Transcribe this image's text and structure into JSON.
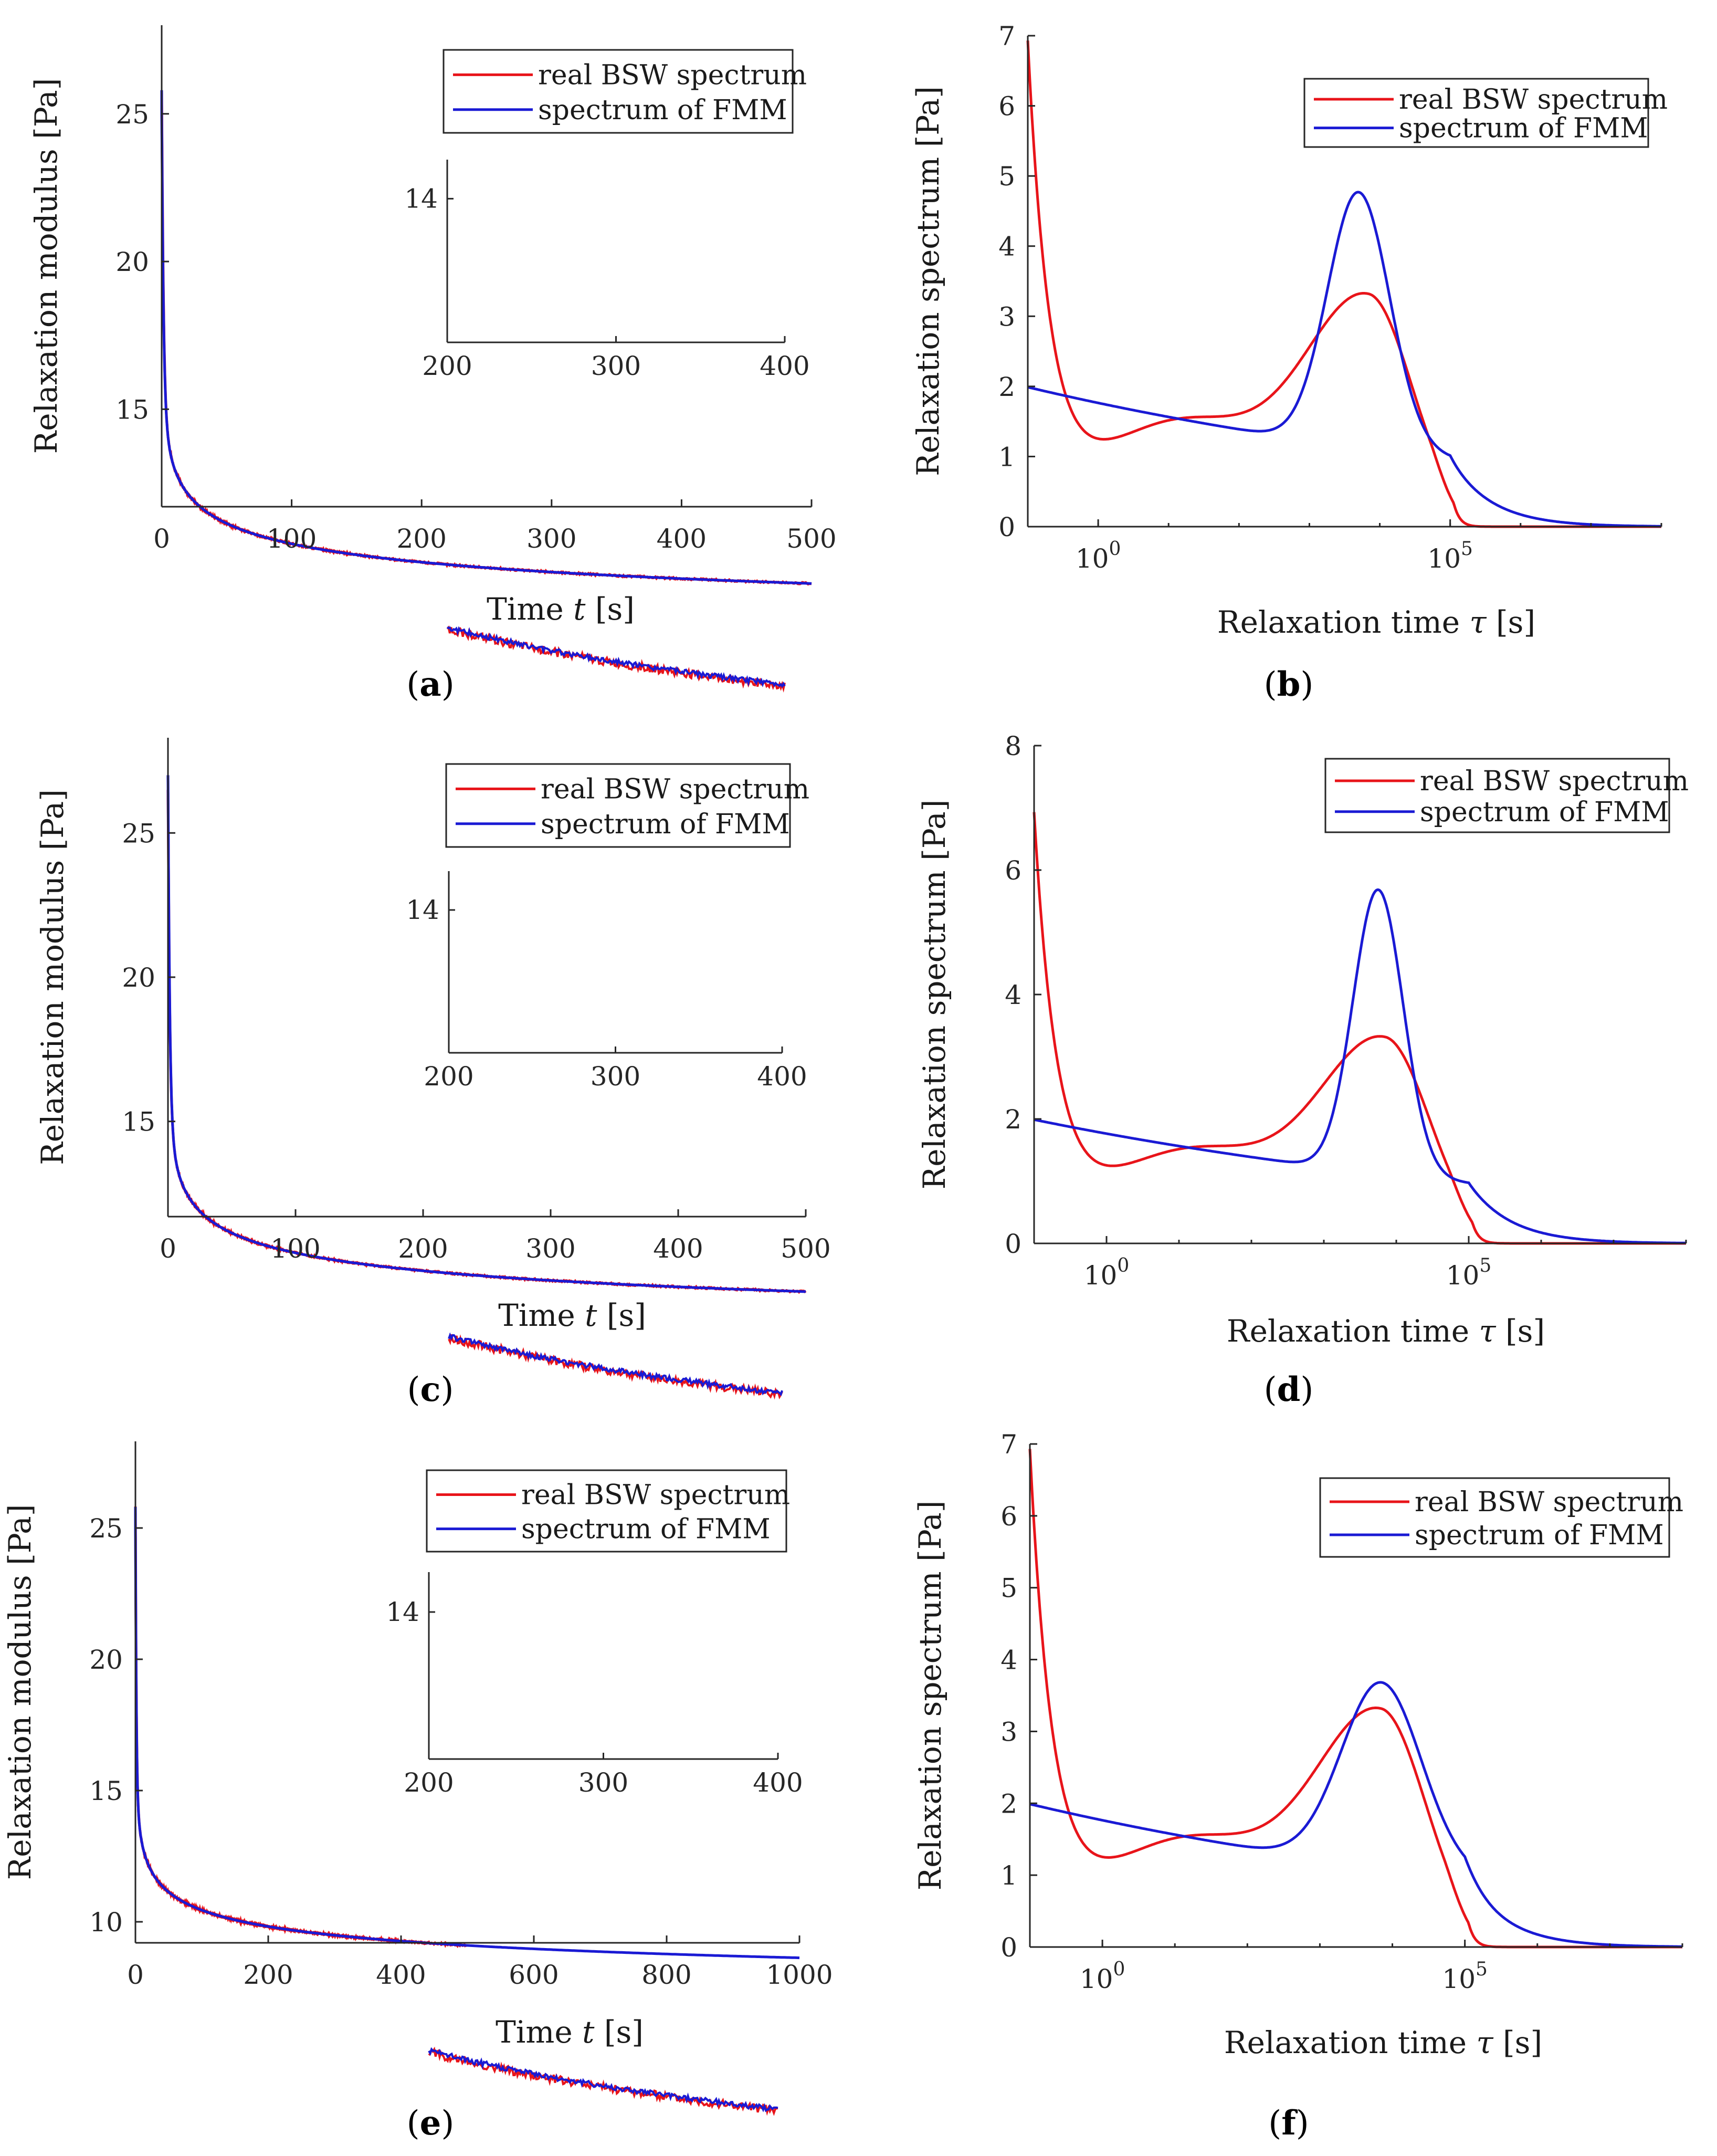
{
  "colors": {
    "red": "#e8141a",
    "blue": "#1a1ad4",
    "axis": "#262626"
  },
  "legend": {
    "red": "real BSW spectrum",
    "blue": "spectrum of FMM"
  },
  "panel_labels": [
    "(a)",
    "(b)",
    "(c)",
    "(d)",
    "(e)",
    "(f)"
  ],
  "chart_data": [
    {
      "id": "a",
      "type": "line",
      "panel_label": "(a)",
      "xlabel_prefix": "Time ",
      "xlabel_var": "t",
      "xlabel_unit": " [s]",
      "ylabel": "Relaxation modulus  [Pa]",
      "xlim": [
        0,
        500
      ],
      "ylim": [
        11.7,
        28.0
      ],
      "xticks": [
        0,
        100,
        200,
        300,
        400,
        500
      ],
      "yticks": [
        15,
        20,
        25
      ],
      "red_tmax": 500,
      "blue_tmax": 500,
      "red_start": 25.8,
      "blue_start": 25.0,
      "inset": {
        "xlim": [
          200,
          400
        ],
        "ylim": [
          12.6,
          14.35
        ],
        "xticks": [
          200,
          300,
          400
        ],
        "yticks": [
          14
        ]
      }
    },
    {
      "id": "b",
      "type": "line",
      "panel_label": "(b)",
      "xscale": "log",
      "xlabel_prefix": "Relaxation time ",
      "xlabel_var": "τ",
      "xlabel_unit": " [s]",
      "ylabel": "Relaxation spectrum  [Pa]",
      "xlim_log10": [
        -1,
        8
      ],
      "ylim": [
        0,
        7
      ],
      "xticks_log10": [
        0,
        5
      ],
      "yticks": [
        0,
        1,
        2,
        3,
        4,
        5,
        6,
        7
      ],
      "red_peak": 3.5,
      "blue_peak": 4.95,
      "blue_peak_log10": 3.7
    },
    {
      "id": "c",
      "type": "line",
      "panel_label": "(c)",
      "xlabel_prefix": "Time ",
      "xlabel_var": "t",
      "xlabel_unit": " [s]",
      "ylabel": "Relaxation modulus  [Pa]",
      "xlim": [
        0,
        500
      ],
      "ylim": [
        11.7,
        28.3
      ],
      "xticks": [
        0,
        100,
        200,
        300,
        400,
        500
      ],
      "yticks": [
        15,
        20,
        25
      ],
      "red_tmax": 500,
      "blue_tmax": 500,
      "red_start": 26.5,
      "blue_start": 27.0,
      "inset": {
        "xlim": [
          200,
          400
        ],
        "ylim": [
          12.6,
          14.35
        ],
        "xticks": [
          200,
          300,
          400
        ],
        "yticks": [
          14
        ]
      }
    },
    {
      "id": "d",
      "type": "line",
      "panel_label": "(d)",
      "xscale": "log",
      "xlabel_prefix": "Relaxation time ",
      "xlabel_var": "τ",
      "xlabel_unit": " [s]",
      "ylabel": "Relaxation spectrum  [Pa]",
      "xlim_log10": [
        -1,
        8
      ],
      "ylim": [
        0,
        8
      ],
      "xticks_log10": [
        0,
        5
      ],
      "yticks": [
        0,
        2,
        4,
        6,
        8
      ],
      "red_peak": 3.5,
      "blue_peak": 5.9,
      "blue_peak_log10": 3.75
    },
    {
      "id": "e",
      "type": "line",
      "panel_label": "(e)",
      "xlabel_prefix": "Time ",
      "xlabel_var": "t",
      "xlabel_unit": " [s]",
      "ylabel": "Relaxation modulus  [Pa]",
      "xlim": [
        0,
        1000
      ],
      "ylim": [
        9.2,
        28.3
      ],
      "xticks": [
        0,
        200,
        400,
        600,
        800,
        1000
      ],
      "yticks": [
        10,
        15,
        20,
        25
      ],
      "red_tmax": 500,
      "blue_tmax": 1000,
      "red_start": 25.8,
      "blue_start": 25.0,
      "inset": {
        "xlim": [
          200,
          400
        ],
        "ylim": [
          12.6,
          14.35
        ],
        "xticks": [
          200,
          300,
          400
        ],
        "yticks": [
          14
        ]
      }
    },
    {
      "id": "f",
      "type": "line",
      "panel_label": "(f)",
      "xscale": "log",
      "xlabel_prefix": "Relaxation time ",
      "xlabel_var": "τ",
      "xlabel_unit": " [s]",
      "ylabel": "Relaxation spectrum  [Pa]",
      "xlim_log10": [
        -1,
        8
      ],
      "ylim": [
        0,
        7
      ],
      "xticks_log10": [
        0,
        5
      ],
      "yticks": [
        0,
        1,
        2,
        3,
        4,
        5,
        6,
        7
      ],
      "red_peak": 3.5,
      "blue_peak": 3.85,
      "blue_peak_log10": 3.85
    }
  ]
}
